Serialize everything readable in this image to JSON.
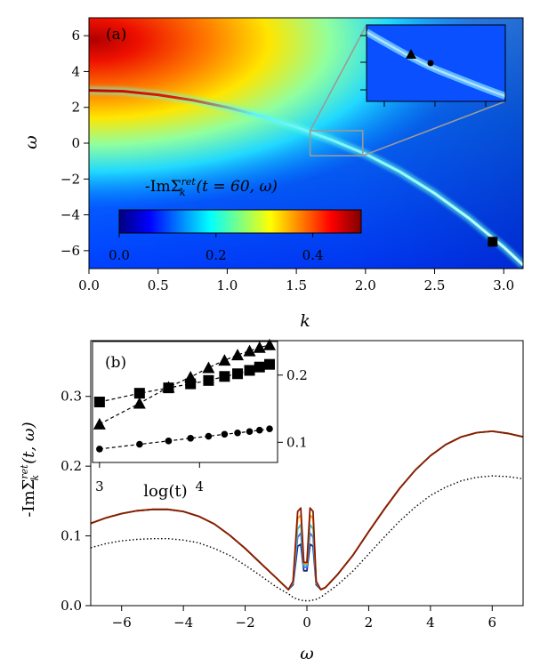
{
  "chart_data": [
    {
      "panel": "(a)",
      "type": "heatmap",
      "xlabel": "k",
      "ylabel": "ω",
      "xlim": [
        0,
        3.14
      ],
      "ylim": [
        -7,
        7
      ],
      "xticks": [
        {
          "v": 0.0,
          "t": "0.0"
        },
        {
          "v": 0.5,
          "t": "0.5"
        },
        {
          "v": 1.0,
          "t": "1.0"
        },
        {
          "v": 1.5,
          "t": "1.5"
        },
        {
          "v": 2.0,
          "t": "2.0"
        },
        {
          "v": 2.5,
          "t": "2.5"
        },
        {
          "v": 3.0,
          "t": "3.0"
        }
      ],
      "yticks": [
        {
          "v": 6,
          "t": "6"
        },
        {
          "v": 4,
          "t": "4"
        },
        {
          "v": 2,
          "t": "2"
        },
        {
          "v": 0,
          "t": "0"
        },
        {
          "v": -2,
          "t": "−2"
        },
        {
          "v": -4,
          "t": "−4"
        },
        {
          "v": -6,
          "t": "−6"
        }
      ],
      "colorbar": {
        "label": "-ImΣ",
        "label_sup": "ret",
        "label_sub": "k",
        "label_args": "(t = 60, ω)",
        "range": [
          0,
          0.5
        ],
        "ticks": [
          {
            "v": 0.0,
            "t": "0.0"
          },
          {
            "v": 0.2,
            "t": "0.2"
          },
          {
            "v": 0.4,
            "t": "0.4"
          }
        ]
      },
      "dispersion_k": [
        0.0,
        0.25,
        0.5,
        0.75,
        1.0,
        1.25,
        1.5,
        1.75,
        2.0,
        2.25,
        2.5,
        2.75,
        3.0,
        3.14
      ],
      "dispersion_omega": [
        2.95,
        2.9,
        2.7,
        2.4,
        2.0,
        1.5,
        0.9,
        0.2,
        -0.6,
        -1.6,
        -2.8,
        -4.2,
        -5.8,
        -6.8
      ],
      "zoom_box": {
        "k": [
          1.6,
          1.98
        ],
        "omega": [
          -0.7,
          0.7
        ]
      },
      "markers": [
        {
          "shape": "square",
          "k": 2.92,
          "omega": -5.5
        }
      ],
      "inset_markers": [
        {
          "shape": "triangle"
        },
        {
          "shape": "circle"
        }
      ]
    },
    {
      "panel": "(b)",
      "type": "line",
      "xlabel": "ω",
      "ylabel": "-ImΣ",
      "ylabel_sup": "ret",
      "ylabel_sub": "k",
      "ylabel_args": "(t, ω)",
      "xlim": [
        -7,
        7
      ],
      "ylim": [
        0,
        0.38
      ],
      "xticks": [
        {
          "v": -6,
          "t": "−6"
        },
        {
          "v": -4,
          "t": "−4"
        },
        {
          "v": -2,
          "t": "−2"
        },
        {
          "v": 0,
          "t": "0"
        },
        {
          "v": 2,
          "t": "2"
        },
        {
          "v": 4,
          "t": "4"
        },
        {
          "v": 6,
          "t": "6"
        }
      ],
      "yticks": [
        {
          "v": 0.0,
          "t": "0.0"
        },
        {
          "v": 0.1,
          "t": "0.1"
        },
        {
          "v": 0.2,
          "t": "0.2"
        },
        {
          "v": 0.3,
          "t": "0.3"
        }
      ],
      "x": [
        -7,
        -6.5,
        -6,
        -5.5,
        -5,
        -4.5,
        -4,
        -3.5,
        -3,
        -2.5,
        -2,
        -1.5,
        -1,
        -0.6,
        -0.45,
        -0.3,
        -0.2,
        -0.1,
        0,
        0.1,
        0.2,
        0.3,
        0.45,
        0.6,
        1,
        1.5,
        2,
        2.5,
        3,
        3.5,
        4,
        4.5,
        5,
        5.5,
        6,
        6.5,
        7
      ],
      "series": [
        {
          "name": "dotted",
          "color": "#000000",
          "style": "dotted",
          "values": [
            0.083,
            0.089,
            0.093,
            0.095,
            0.096,
            0.096,
            0.094,
            0.09,
            0.082,
            0.072,
            0.058,
            0.043,
            0.027,
            0.017,
            0.012,
            0.009,
            0.008,
            0.007,
            0.007,
            0.007,
            0.008,
            0.009,
            0.012,
            0.017,
            0.03,
            0.05,
            0.074,
            0.098,
            0.121,
            0.141,
            0.158,
            0.17,
            0.179,
            0.184,
            0.186,
            0.185,
            0.182
          ]
        },
        {
          "name": "navy",
          "color": "#1a237e",
          "style": "solid",
          "values": [
            0.118,
            0.126,
            0.132,
            0.136,
            0.138,
            0.138,
            0.135,
            0.128,
            0.117,
            0.101,
            0.082,
            0.061,
            0.04,
            0.023,
            0.03,
            0.085,
            0.088,
            0.05,
            0.05,
            0.088,
            0.085,
            0.03,
            0.023,
            0.026,
            0.045,
            0.073,
            0.106,
            0.138,
            0.168,
            0.194,
            0.215,
            0.231,
            0.242,
            0.248,
            0.25,
            0.247,
            0.242
          ]
        },
        {
          "name": "blue",
          "color": "#2979ff",
          "style": "solid",
          "values": [
            0.118,
            0.126,
            0.132,
            0.136,
            0.138,
            0.138,
            0.135,
            0.128,
            0.117,
            0.101,
            0.082,
            0.061,
            0.04,
            0.023,
            0.032,
            0.098,
            0.104,
            0.055,
            0.055,
            0.104,
            0.098,
            0.032,
            0.023,
            0.026,
            0.045,
            0.073,
            0.106,
            0.138,
            0.168,
            0.194,
            0.215,
            0.231,
            0.242,
            0.248,
            0.25,
            0.247,
            0.242
          ]
        },
        {
          "name": "cyan",
          "color": "#26c6da",
          "style": "solid",
          "values": [
            0.118,
            0.126,
            0.132,
            0.136,
            0.138,
            0.138,
            0.135,
            0.128,
            0.117,
            0.101,
            0.082,
            0.061,
            0.04,
            0.023,
            0.033,
            0.11,
            0.116,
            0.058,
            0.058,
            0.116,
            0.11,
            0.033,
            0.023,
            0.026,
            0.045,
            0.073,
            0.106,
            0.138,
            0.168,
            0.194,
            0.215,
            0.231,
            0.242,
            0.248,
            0.25,
            0.247,
            0.242
          ]
        },
        {
          "name": "orange",
          "color": "#ff9800",
          "style": "solid",
          "values": [
            0.118,
            0.126,
            0.132,
            0.136,
            0.138,
            0.138,
            0.135,
            0.128,
            0.117,
            0.101,
            0.082,
            0.061,
            0.04,
            0.023,
            0.034,
            0.125,
            0.13,
            0.06,
            0.06,
            0.13,
            0.125,
            0.034,
            0.023,
            0.026,
            0.045,
            0.073,
            0.106,
            0.138,
            0.168,
            0.194,
            0.215,
            0.231,
            0.242,
            0.248,
            0.25,
            0.247,
            0.242
          ]
        },
        {
          "name": "darkred",
          "color": "#8b1a00",
          "style": "solid",
          "values": [
            0.118,
            0.126,
            0.132,
            0.136,
            0.138,
            0.138,
            0.135,
            0.128,
            0.117,
            0.101,
            0.082,
            0.061,
            0.04,
            0.023,
            0.035,
            0.135,
            0.14,
            0.062,
            0.062,
            0.14,
            0.135,
            0.035,
            0.023,
            0.026,
            0.045,
            0.073,
            0.106,
            0.138,
            0.168,
            0.194,
            0.215,
            0.231,
            0.242,
            0.248,
            0.25,
            0.247,
            0.242
          ]
        }
      ],
      "inset": {
        "panel": "(b)",
        "type": "scatter",
        "xlabel": "log(t)",
        "xlim": [
          2.93,
          4.78
        ],
        "xticks": [
          {
            "v": 3,
            "t": "3"
          },
          {
            "v": 4,
            "t": "4"
          }
        ],
        "left_ylim": [
          0.195,
          0.375
        ],
        "right_ylim": [
          0.07,
          0.25
        ],
        "right_yticks": [
          {
            "v": 0.1,
            "t": "0.1"
          },
          {
            "v": 0.2,
            "t": "0.2"
          }
        ],
        "series": [
          {
            "name": "squares",
            "marker": "square",
            "axis": "left",
            "x": [
              3.0,
              3.4,
              3.69,
              3.91,
              4.09,
              4.25,
              4.38,
              4.5,
              4.6,
              4.7
            ],
            "values": [
              0.285,
              0.298,
              0.306,
              0.312,
              0.317,
              0.323,
              0.327,
              0.332,
              0.337,
              0.341
            ]
          },
          {
            "name": "triangles",
            "marker": "triangle",
            "axis": "left",
            "x": [
              3.0,
              3.4,
              3.69,
              3.91,
              4.09,
              4.25,
              4.38,
              4.5,
              4.6,
              4.7
            ],
            "values": [
              0.252,
              0.283,
              0.307,
              0.322,
              0.336,
              0.347,
              0.355,
              0.361,
              0.366,
              0.37
            ]
          },
          {
            "name": "circles",
            "marker": "circle",
            "axis": "right",
            "x": [
              3.0,
              3.4,
              3.69,
              3.91,
              4.09,
              4.25,
              4.38,
              4.5,
              4.6,
              4.7
            ],
            "values": [
              0.09,
              0.097,
              0.102,
              0.106,
              0.109,
              0.112,
              0.114,
              0.116,
              0.118,
              0.12
            ]
          }
        ]
      }
    }
  ]
}
